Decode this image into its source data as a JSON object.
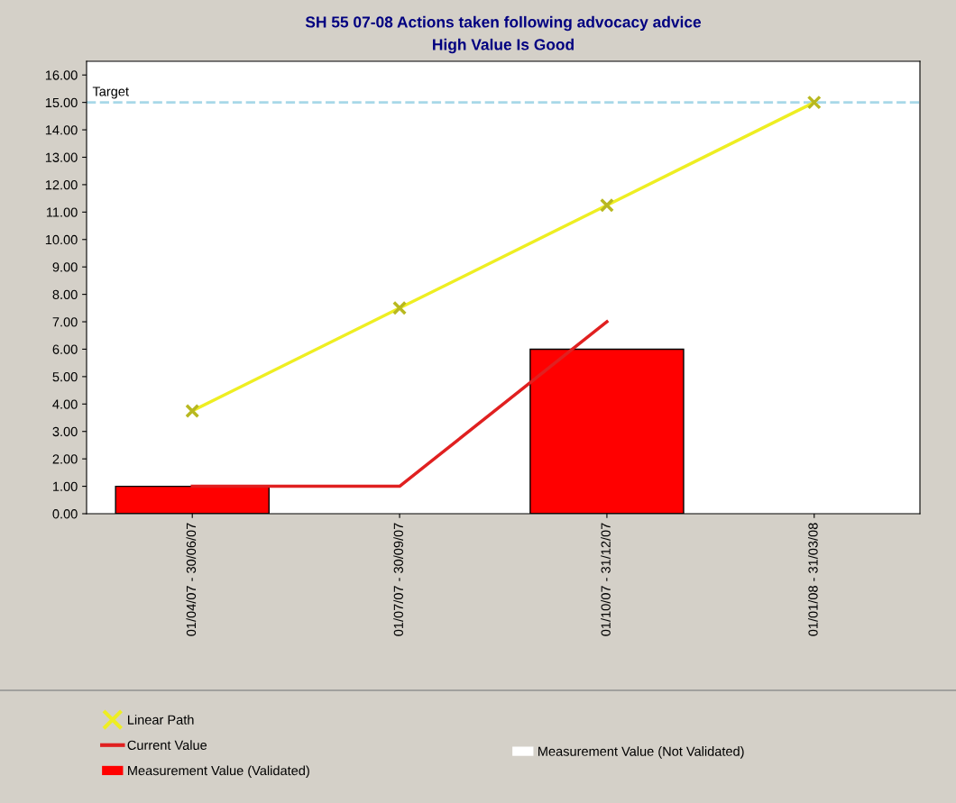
{
  "chart_data": {
    "type": "bar",
    "title": "SH 55 07-08 Actions taken following advocacy advice",
    "subtitle": "High Value Is Good",
    "categories": [
      "01/04/07 - 30/06/07",
      "01/07/07 - 30/09/07",
      "01/10/07 - 31/12/07",
      "01/01/08 - 31/03/08"
    ],
    "series": [
      {
        "name": "Linear Path",
        "type": "line",
        "color": "#eeee22",
        "marker": "cross",
        "values": [
          3.75,
          7.5,
          11.25,
          15
        ]
      },
      {
        "name": "Current Value",
        "type": "line",
        "color": "#e02020",
        "marker": "none",
        "values": [
          1,
          1,
          7,
          null
        ]
      },
      {
        "name": "Measurement Value (Not Validated)",
        "color": "#ffffff",
        "values": [
          null,
          null,
          null,
          null
        ]
      },
      {
        "name": "Measurement Value (Validated)",
        "color": "#ff0000",
        "values": [
          1,
          null,
          6,
          null
        ]
      }
    ],
    "ylim": [
      0,
      16.5
    ],
    "yticks": [
      {
        "value": 0,
        "label": "0.00"
      },
      {
        "value": 1,
        "label": "1.00"
      },
      {
        "value": 2,
        "label": "2.00"
      },
      {
        "value": 3,
        "label": "3.00"
      },
      {
        "value": 4,
        "label": "4.00"
      },
      {
        "value": 5,
        "label": "5.00"
      },
      {
        "value": 6,
        "label": "6.00"
      },
      {
        "value": 7,
        "label": "7.00"
      },
      {
        "value": 8,
        "label": "8.00"
      },
      {
        "value": 9,
        "label": "9.00"
      },
      {
        "value": 10,
        "label": "10.00"
      },
      {
        "value": 11,
        "label": "11.00"
      },
      {
        "value": 12,
        "label": "12.00"
      },
      {
        "value": 13,
        "label": "13.00"
      },
      {
        "value": 14,
        "label": "14.00"
      },
      {
        "value": 15,
        "label": "15.00"
      },
      {
        "value": 16,
        "label": "16.00"
      }
    ],
    "ref_lines": [
      {
        "axis": "y",
        "value": 15,
        "label": "Target",
        "color": "#a8d8e8",
        "line_style": "dashed"
      }
    ],
    "grid": false,
    "legend": "bottom"
  }
}
